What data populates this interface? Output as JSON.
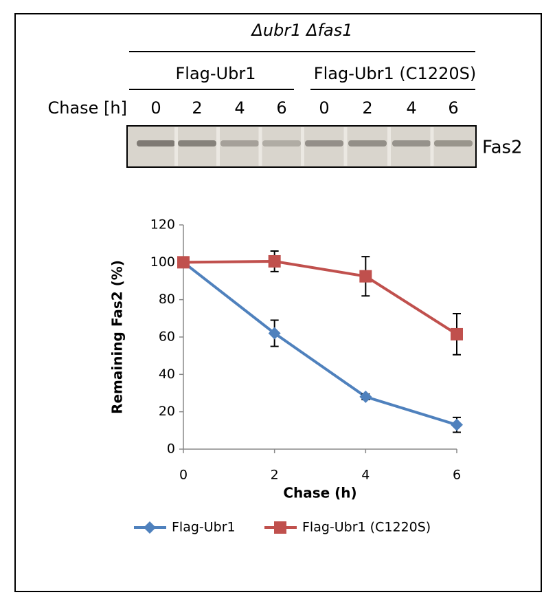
{
  "blot": {
    "title": "Δubr1 Δfas1",
    "groups": [
      "Flag-Ubr1",
      "Flag-Ubr1 (C1220S)"
    ],
    "row_label": "Chase [h]",
    "lanes": [
      0,
      2,
      4,
      6,
      0,
      2,
      4,
      6
    ],
    "band_label": "Fas2"
  },
  "chart_data": {
    "type": "line",
    "x_label": "Chase (h)",
    "y_label": "Remaining Fas2 (%)",
    "x": [
      0,
      2,
      4,
      6
    ],
    "xlim": [
      0,
      6
    ],
    "xticks": [
      0,
      2,
      4,
      6
    ],
    "ylim": [
      0,
      120
    ],
    "yticks": [
      0,
      20,
      40,
      60,
      80,
      100,
      120
    ],
    "grid": false,
    "legend": "bottom",
    "series": [
      {
        "name": "Flag-Ubr1",
        "color": "#4f81bd",
        "marker": "diamond",
        "values": [
          100,
          62,
          28,
          13
        ],
        "errors": [
          0,
          7,
          1.5,
          4
        ]
      },
      {
        "name": "Flag-Ubr1 (C1220S)",
        "color": "#c0504d",
        "marker": "square",
        "values": [
          100,
          100.5,
          92.5,
          61.5
        ],
        "errors": [
          0,
          5.5,
          10.5,
          11
        ]
      }
    ]
  }
}
